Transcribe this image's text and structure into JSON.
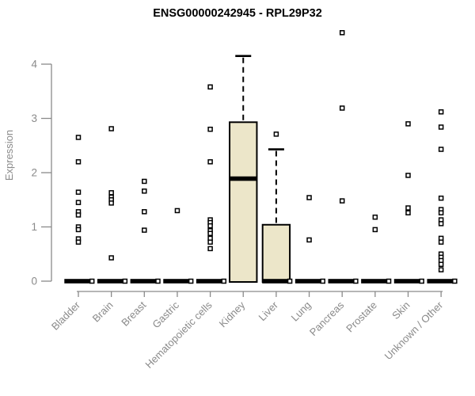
{
  "chart_data": {
    "type": "boxplot",
    "title": "ENSG00000242945 - RPL29P32",
    "ylabel": "Expression",
    "xlabel": "",
    "ylim": [
      0,
      4.6
    ],
    "yticks": [
      0,
      1,
      2,
      3,
      4
    ],
    "grid": false,
    "legend": "none",
    "point_marker": "open-square",
    "categories": [
      "Bladder",
      "Brain",
      "Breast",
      "Gastric",
      "Hematopoietic cells",
      "Kidney",
      "Liver",
      "Lung",
      "Pancreas",
      "Prostate",
      "Skin",
      "Unknown / Other"
    ],
    "series": [
      {
        "category": "Bladder",
        "box": {
          "median": 0,
          "q1": 0,
          "q3": 0,
          "whisker_low": 0,
          "whisker_high": 0
        },
        "points": [
          2.65,
          2.2,
          1.64,
          1.45,
          1.28,
          1.22,
          1.0,
          0.95,
          0.78,
          0.72
        ]
      },
      {
        "category": "Brain",
        "box": {
          "median": 0,
          "q1": 0,
          "q3": 0,
          "whisker_low": 0,
          "whisker_high": 0
        },
        "points": [
          2.81,
          1.63,
          1.55,
          1.5,
          1.44,
          0.43
        ]
      },
      {
        "category": "Breast",
        "box": {
          "median": 0,
          "q1": 0,
          "q3": 0,
          "whisker_low": 0,
          "whisker_high": 0
        },
        "points": [
          1.84,
          1.66,
          1.28,
          0.94
        ]
      },
      {
        "category": "Gastric",
        "box": {
          "median": 0,
          "q1": 0,
          "q3": 0,
          "whisker_low": 0,
          "whisker_high": 0
        },
        "points": [
          1.3
        ]
      },
      {
        "category": "Hematopoietic cells",
        "box": {
          "median": 0,
          "q1": 0,
          "q3": 0,
          "whisker_low": 0,
          "whisker_high": 0
        },
        "points": [
          3.58,
          2.8,
          2.2,
          1.13,
          1.08,
          1.02,
          0.93,
          0.88,
          0.79,
          0.72,
          0.6
        ]
      },
      {
        "category": "Kidney",
        "box": {
          "median": 1.89,
          "q1": 0,
          "q3": 2.93,
          "whisker_low": 0,
          "whisker_high": 4.15
        },
        "points": []
      },
      {
        "category": "Liver",
        "box": {
          "median": 0,
          "q1": 0,
          "q3": 1.04,
          "whisker_low": 0,
          "whisker_high": 2.43
        },
        "points": [
          2.71
        ]
      },
      {
        "category": "Lung",
        "box": {
          "median": 0,
          "q1": 0,
          "q3": 0,
          "whisker_low": 0,
          "whisker_high": 0
        },
        "points": [
          1.54,
          0.76
        ]
      },
      {
        "category": "Pancreas",
        "box": {
          "median": 0,
          "q1": 0,
          "q3": 0,
          "whisker_low": 0,
          "whisker_high": 0
        },
        "points": [
          4.58,
          3.19,
          1.48
        ]
      },
      {
        "category": "Prostate",
        "box": {
          "median": 0,
          "q1": 0,
          "q3": 0,
          "whisker_low": 0,
          "whisker_high": 0
        },
        "points": [
          1.18,
          0.95
        ]
      },
      {
        "category": "Skin",
        "box": {
          "median": 0,
          "q1": 0,
          "q3": 0,
          "whisker_low": 0,
          "whisker_high": 0
        },
        "points": [
          2.9,
          1.95,
          1.35,
          1.26
        ]
      },
      {
        "category": "Unknown / Other",
        "box": {
          "median": 0,
          "q1": 0,
          "q3": 0,
          "whisker_low": 0,
          "whisker_high": 0
        },
        "points": [
          3.12,
          2.84,
          2.43,
          1.53,
          1.32,
          1.26,
          1.13,
          1.06,
          0.79,
          0.72,
          0.5,
          0.44,
          0.38,
          0.31,
          0.21
        ]
      }
    ]
  },
  "colors": {
    "box_fill": "#ece6c9",
    "box_stroke": "#000000",
    "median": "#000000",
    "point_stroke": "#000000",
    "point_fill": "#ffffff",
    "axis": "#8a8a8a",
    "axis_text": "#8a8a8a",
    "title_text": "#000000",
    "background": "#ffffff"
  }
}
